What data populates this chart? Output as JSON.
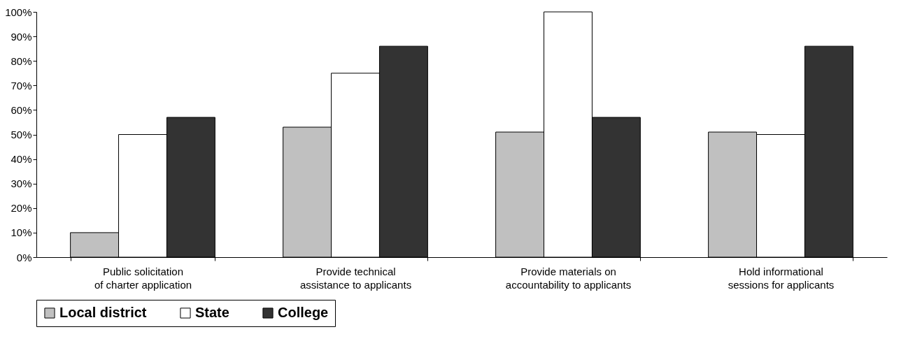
{
  "chart_data": {
    "type": "bar",
    "categories": [
      "Public solicitation of charter application",
      "Provide technical assistance to applicants",
      "Provide materials on accountability to applicants",
      "Hold informational sessions for applicants"
    ],
    "series": [
      {
        "name": "Local district",
        "color": "#c0c0c0",
        "values": [
          10,
          53,
          51,
          51
        ]
      },
      {
        "name": "State",
        "color": "#ffffff",
        "values": [
          50,
          75,
          100,
          50
        ]
      },
      {
        "name": "College",
        "color": "#333333",
        "values": [
          57,
          86,
          57,
          86
        ]
      }
    ],
    "ylim": [
      0,
      100
    ],
    "yticks": [
      {
        "value": 0,
        "label": "0%"
      },
      {
        "value": 10,
        "label": "10%"
      },
      {
        "value": 20,
        "label": "20%"
      },
      {
        "value": 30,
        "label": "30%"
      },
      {
        "value": 40,
        "label": "40%"
      },
      {
        "value": 50,
        "label": "50%"
      },
      {
        "value": 60,
        "label": "60%"
      },
      {
        "value": 70,
        "label": "70%"
      },
      {
        "value": 80,
        "label": "80%"
      },
      {
        "value": 90,
        "label": "90%"
      },
      {
        "value": 100,
        "label": "100%"
      }
    ],
    "grid": false,
    "legend": "bottom"
  }
}
